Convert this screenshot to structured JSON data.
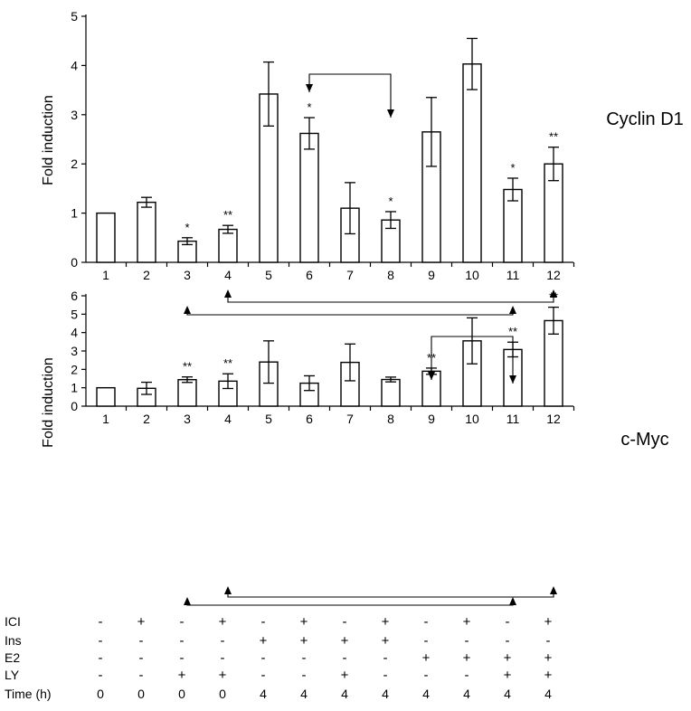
{
  "chart_data": [
    {
      "type": "bar",
      "name": "Cyclin D1",
      "side_label": "Cyclin D1",
      "ylabel": "Fold induction",
      "ylim": [
        0,
        5
      ],
      "yticks": [
        0,
        1,
        2,
        3,
        4,
        5
      ],
      "categories": [
        "1",
        "2",
        "3",
        "4",
        "5",
        "6",
        "7",
        "8",
        "9",
        "10",
        "11",
        "12"
      ],
      "values": [
        1.0,
        1.22,
        0.43,
        0.67,
        3.42,
        2.62,
        1.1,
        0.86,
        2.65,
        4.03,
        1.48,
        2.0
      ],
      "errors": [
        0,
        0.1,
        0.07,
        0.08,
        0.65,
        0.32,
        0.52,
        0.17,
        0.7,
        0.52,
        0.23,
        0.34
      ],
      "significance": [
        "",
        "",
        "*",
        "**",
        "",
        "*",
        "",
        "*",
        "",
        "",
        "*",
        "**"
      ],
      "comparisons": [
        {
          "from": "6",
          "to": "8",
          "position": "above"
        },
        {
          "from": "4",
          "to": "12",
          "position": "below"
        },
        {
          "from": "3",
          "to": "11",
          "position": "below"
        }
      ]
    },
    {
      "type": "bar",
      "name": "c-Myc",
      "side_label": "c-Myc",
      "ylabel": "Fold induction",
      "ylim": [
        0,
        6
      ],
      "yticks": [
        0,
        1,
        2,
        3,
        4,
        5,
        6
      ],
      "categories": [
        "1",
        "2",
        "3",
        "4",
        "5",
        "6",
        "7",
        "8",
        "9",
        "10",
        "11",
        "12"
      ],
      "values": [
        1.0,
        0.97,
        1.44,
        1.36,
        2.4,
        1.25,
        2.38,
        1.45,
        1.9,
        3.55,
        3.08,
        4.65
      ],
      "errors": [
        0,
        0.33,
        0.15,
        0.4,
        1.15,
        0.4,
        1.0,
        0.13,
        0.17,
        1.25,
        0.4,
        0.73
      ],
      "significance": [
        "",
        "",
        "**",
        "**",
        "",
        "",
        "",
        "",
        "**",
        "",
        "**",
        "**"
      ],
      "comparisons": [
        {
          "from": "9",
          "to": "11",
          "position": "above"
        },
        {
          "from": "4",
          "to": "12",
          "position": "below"
        },
        {
          "from": "3",
          "to": "11",
          "position": "below"
        }
      ]
    }
  ],
  "treatment_table": {
    "rows": [
      {
        "label": "ICI",
        "values": [
          "-",
          "+",
          "-",
          "+",
          "-",
          "+",
          "-",
          "+",
          "-",
          "+",
          "-",
          "+"
        ]
      },
      {
        "label": "Ins",
        "values": [
          "-",
          "-",
          "-",
          "-",
          "+",
          "+",
          "+",
          "+",
          "-",
          "-",
          "-",
          "-"
        ]
      },
      {
        "label": "E2",
        "values": [
          "-",
          "-",
          "-",
          "-",
          "-",
          "-",
          "-",
          "-",
          "+",
          "+",
          "+",
          "+"
        ]
      },
      {
        "label": "LY",
        "values": [
          "-",
          "-",
          "+",
          "+",
          "-",
          "-",
          "+",
          "-",
          "-",
          "-",
          "+",
          "+"
        ]
      },
      {
        "label": "Time (h)",
        "values": [
          "0",
          "0",
          "0",
          "0",
          "4",
          "4",
          "4",
          "4",
          "4",
          "4",
          "4",
          "4"
        ]
      }
    ]
  }
}
